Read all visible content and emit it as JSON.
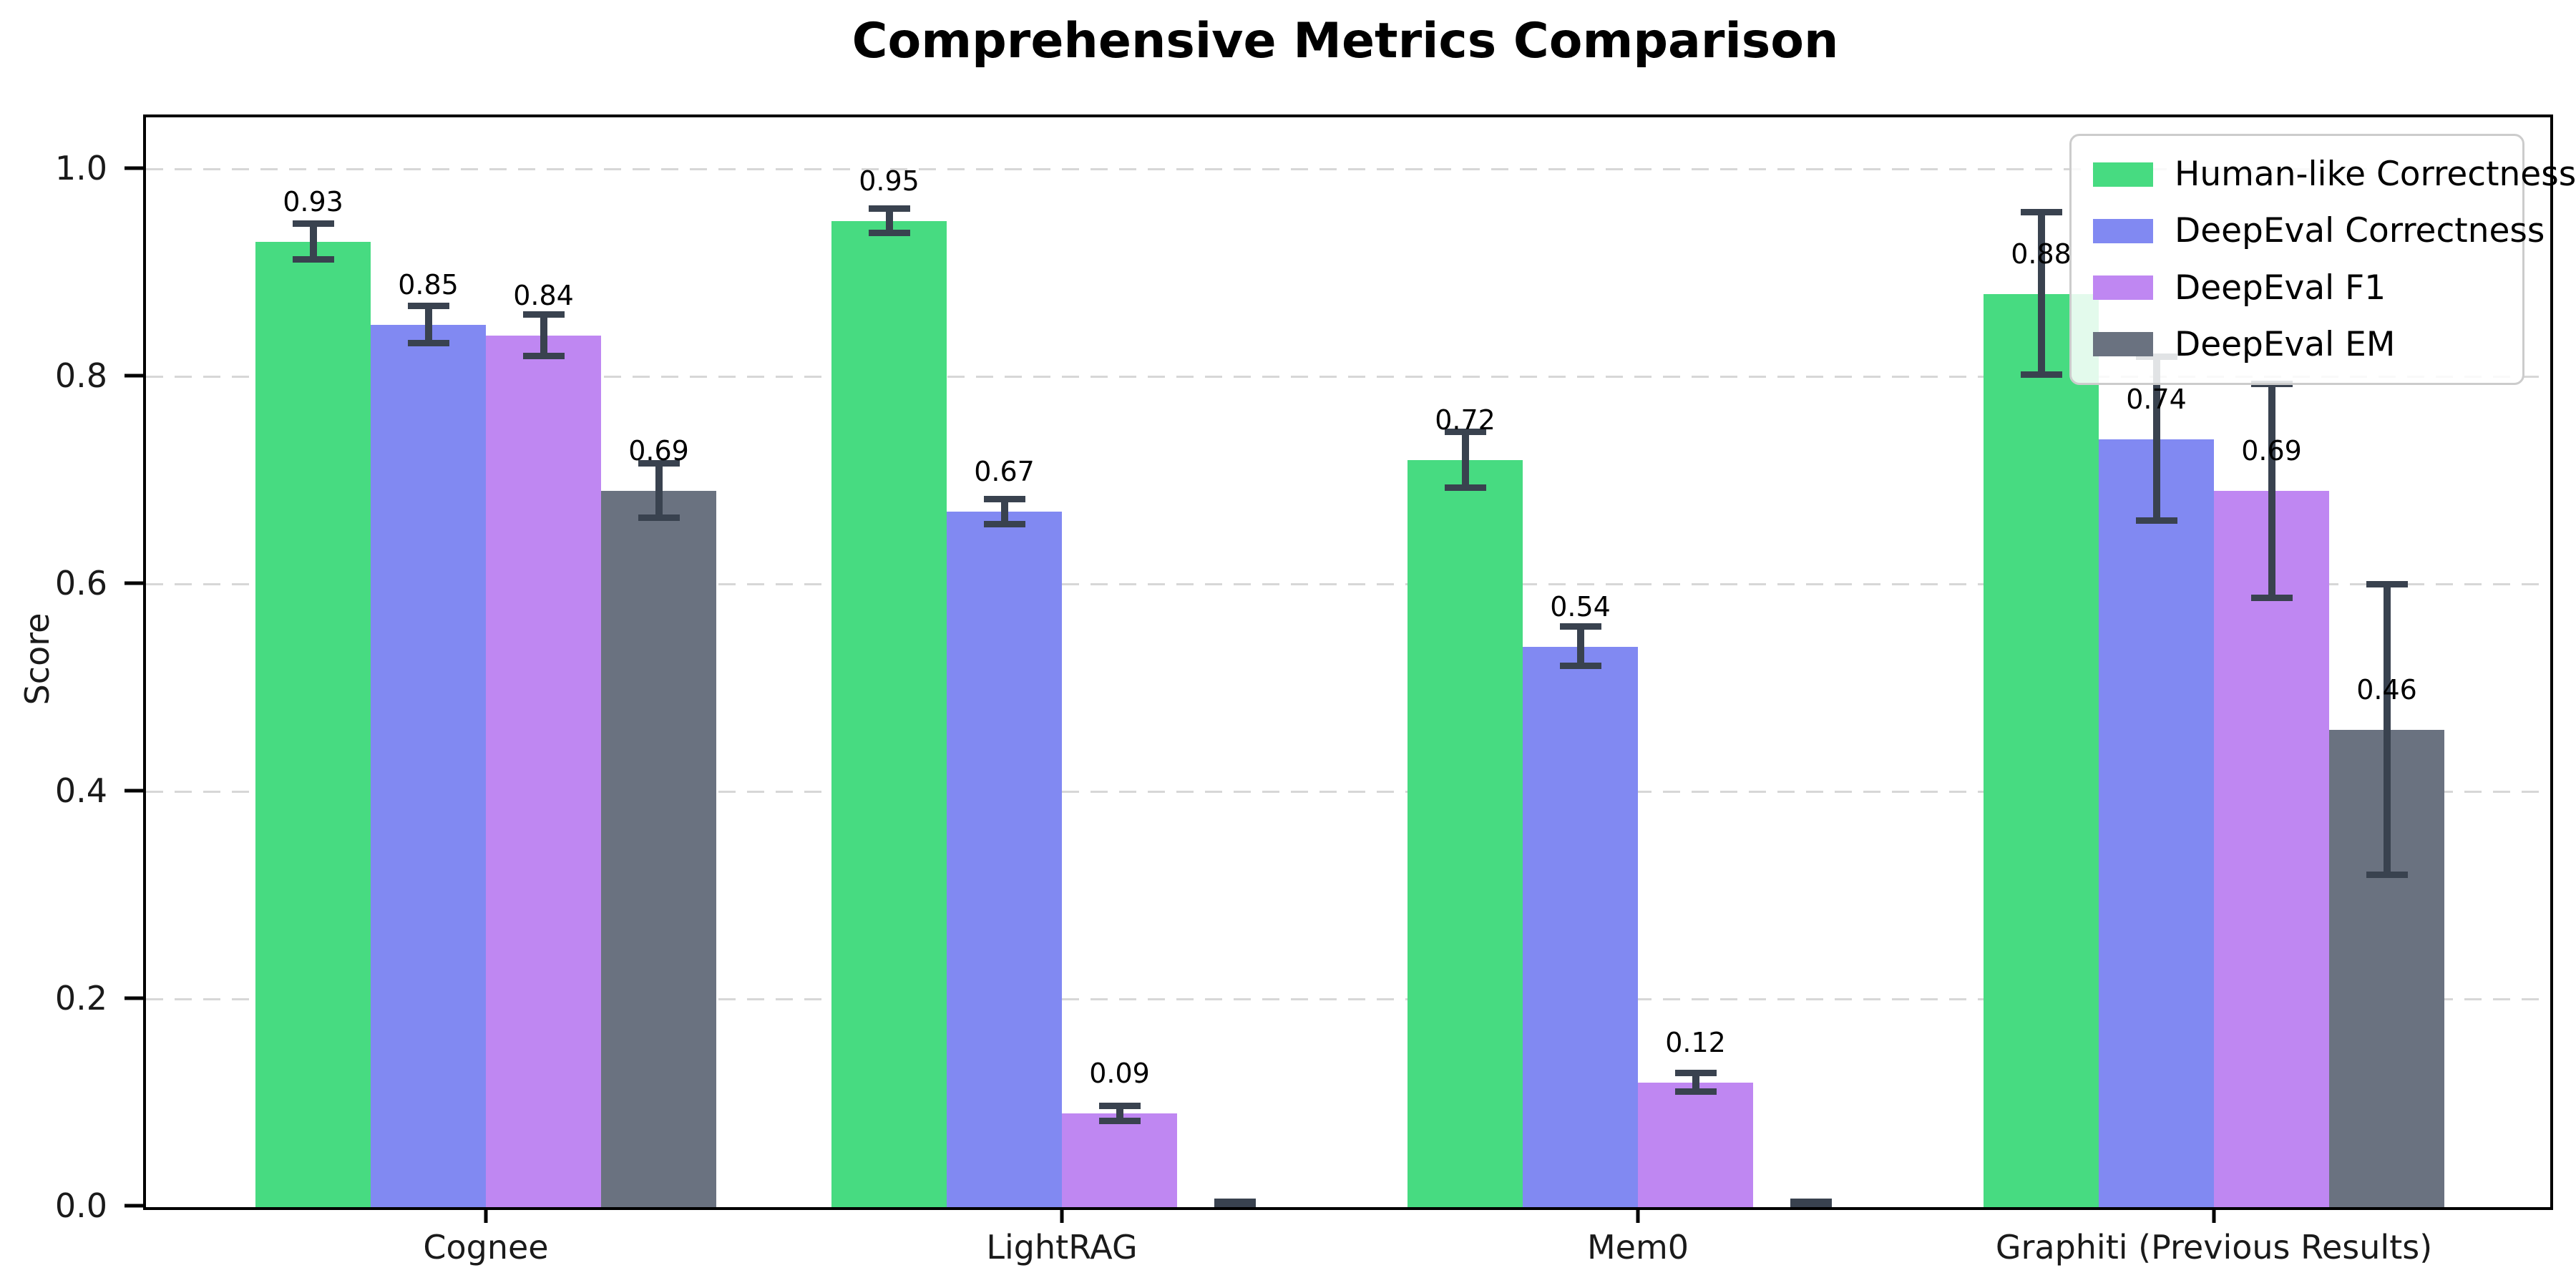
{
  "title": "Comprehensive Metrics Comparison",
  "ylabel": "Score",
  "chart_data": {
    "type": "bar",
    "title": "Comprehensive Metrics Comparison",
    "xlabel": "",
    "ylabel": "Score",
    "categories": [
      "Cognee",
      "LightRAG",
      "Mem0",
      "Graphiti (Previous Results)"
    ],
    "series": [
      {
        "name": "Human-like Correctness",
        "color": "#47db81",
        "values": [
          0.93,
          0.95,
          0.72,
          0.88
        ],
        "errors": [
          0.017,
          0.012,
          0.027,
          0.078
        ],
        "labels": [
          "0.93",
          "0.95",
          "0.72",
          "0.88"
        ]
      },
      {
        "name": "DeepEval Correctness",
        "color": "#8189f2",
        "values": [
          0.85,
          0.67,
          0.54,
          0.74
        ],
        "errors": [
          0.018,
          0.012,
          0.019,
          0.079
        ],
        "labels": [
          "0.85",
          "0.67",
          "0.54",
          "0.74"
        ]
      },
      {
        "name": "DeepEval F1",
        "color": "#bf87f2",
        "values": [
          0.84,
          0.09,
          0.12,
          0.69
        ],
        "errors": [
          0.02,
          0.007,
          0.009,
          0.103
        ],
        "labels": [
          "0.84",
          "0.09",
          "0.12",
          "0.69"
        ]
      },
      {
        "name": "DeepEval EM",
        "color": "#6a7280",
        "values": [
          0.69,
          0.0,
          0.0,
          0.46
        ],
        "errors": [
          0.026,
          0.005,
          0.005,
          0.14
        ],
        "labels": [
          "0.69",
          null,
          null,
          "0.46"
        ]
      }
    ],
    "ylim": [
      0.0,
      1.05
    ],
    "yticks": [
      0.0,
      0.2,
      0.4,
      0.6,
      0.8,
      1.0
    ],
    "ytick_labels": [
      "0.0",
      "0.2",
      "0.4",
      "0.6",
      "0.8",
      "1.0"
    ],
    "grid": "horizontal dashed",
    "grid_color": "#d7d7d7",
    "error_bar_color": "#39424f",
    "legend_position": "upper right",
    "legend_entries": [
      "Human-like Correctness",
      "DeepEval Correctness",
      "DeepEval F1",
      "DeepEval EM"
    ]
  }
}
